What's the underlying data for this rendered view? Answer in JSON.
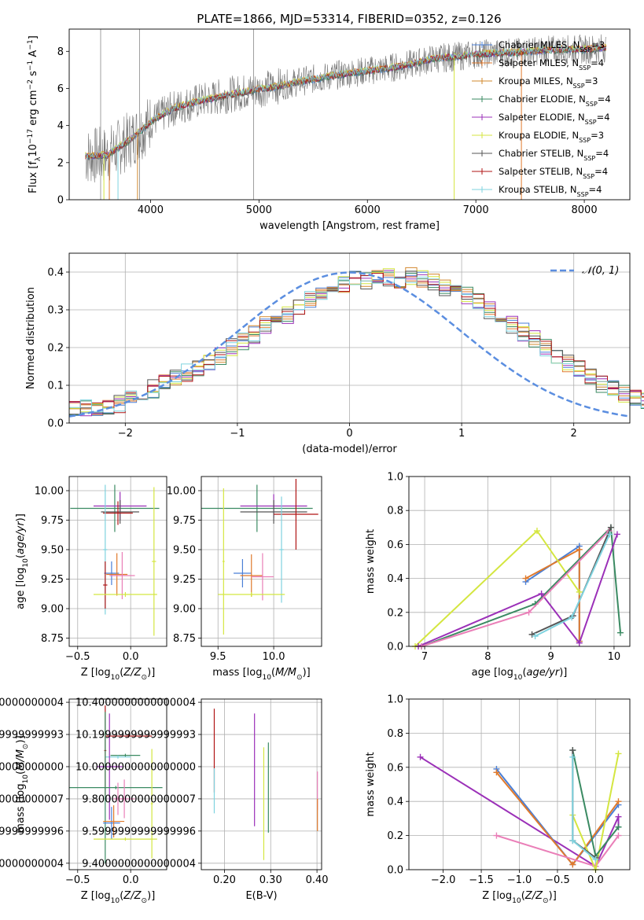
{
  "figure": {
    "title": "PLATE=1866, MJD=53314, FIBERID=0352, z=0.126"
  },
  "colors": {
    "chabrier_miles": "#4a7fd6",
    "salpeter_miles": "#e07a2c",
    "kroupa_miles": "#d2882e",
    "chabrier_elodie": "#3a8a62",
    "salpeter_elodie": "#9b30b8",
    "kroupa_elodie": "#d4e640",
    "chabrier_stelib": "#555555",
    "salpeter_stelib": "#b01515",
    "kroupa_stelib": "#7fd3df",
    "data_spectrum": "#777777",
    "normal_curve": "#5b8ee0",
    "pink": "#ea7fb8"
  },
  "chart_data": [
    {
      "type": "line",
      "panel": "spectrum",
      "title": "PLATE=1866, MJD=53314, FIBERID=0352, z=0.126",
      "xlabel": "wavelength [Angstrom, rest frame]",
      "ylabel": "Flux [f_λ 10^-17 erg cm^-2 s^-1 A^-1]",
      "xlim": [
        3250,
        8420
      ],
      "ylim": [
        0,
        9.2
      ],
      "xticks": [
        4000,
        5000,
        6000,
        7000,
        8000
      ],
      "yticks": [
        0,
        2,
        4,
        6,
        8
      ],
      "grid": false,
      "legend_position": "upper right",
      "legend": [
        {
          "name": "Chabrier MILES, N_SSP=3",
          "color": "#4a7fd6"
        },
        {
          "name": "Salpeter MILES, N_SSP=4",
          "color": "#e07a2c"
        },
        {
          "name": "Kroupa MILES, N_SSP=3",
          "color": "#d2882e"
        },
        {
          "name": "Chabrier ELODIE, N_SSP=4",
          "color": "#3a8a62"
        },
        {
          "name": "Salpeter ELODIE, N_SSP=4",
          "color": "#9b30b8"
        },
        {
          "name": "Kroupa ELODIE, N_SSP=3",
          "color": "#d4e640"
        },
        {
          "name": "Chabrier STELIB, N_SSP=4",
          "color": "#555555"
        },
        {
          "name": "Salpeter STELIB, N_SSP=4",
          "color": "#b01515"
        },
        {
          "name": "Kroupa STELIB, N_SSP=4",
          "color": "#7fd3df"
        }
      ],
      "model_continuum": {
        "x": [
          3400,
          3600,
          3800,
          3950,
          4000,
          4200,
          4400,
          4600,
          4800,
          5000,
          5200,
          5400,
          5600,
          5800,
          6000,
          6200,
          6400,
          6600,
          6800,
          7000,
          7200,
          7400,
          7600,
          7800,
          8000,
          8200
        ],
        "y": [
          2.35,
          2.4,
          3.2,
          3.9,
          4.2,
          4.9,
          5.25,
          5.5,
          5.75,
          5.95,
          6.15,
          6.4,
          6.6,
          6.8,
          6.95,
          7.1,
          7.3,
          7.6,
          7.7,
          7.85,
          7.9,
          7.95,
          8.05,
          8.1,
          8.1,
          8.2
        ]
      }
    },
    {
      "type": "line",
      "panel": "residual_histogram",
      "xlabel": "(data-model)/error",
      "ylabel": "Normed distribution",
      "xlim": [
        -2.5,
        2.5
      ],
      "ylim": [
        0,
        0.45
      ],
      "xticks": [
        -2,
        -1,
        0,
        1,
        2
      ],
      "yticks": [
        0.0,
        0.1,
        0.2,
        0.3,
        0.4
      ],
      "grid": true,
      "legend_position": "upper right",
      "legend": [
        {
          "name": "𝒩(0, 1)",
          "color": "#5b8ee0"
        }
      ],
      "bin_width": 0.1,
      "bin_start": -2.5,
      "histogram_base": [
        0.035,
        0.037,
        0.04,
        0.04,
        0.05,
        0.06,
        0.075,
        0.09,
        0.105,
        0.12,
        0.135,
        0.15,
        0.165,
        0.18,
        0.2,
        0.215,
        0.235,
        0.26,
        0.27,
        0.285,
        0.31,
        0.33,
        0.345,
        0.36,
        0.37,
        0.38,
        0.375,
        0.38,
        0.385,
        0.38,
        0.39,
        0.38,
        0.37,
        0.36,
        0.35,
        0.34,
        0.32,
        0.3,
        0.28,
        0.26,
        0.24,
        0.22,
        0.2,
        0.18,
        0.16,
        0.14,
        0.12,
        0.1,
        0.09,
        0.075,
        0.065,
        0.055,
        0.045,
        0.04,
        0.035,
        0.03,
        0.028,
        0.03,
        0.035,
        0.03
      ]
    },
    {
      "type": "scatter",
      "panel": "age_vs_Z",
      "xlabel": "Z [log10(Z/Z⊙)]",
      "ylabel": "age  [log10(age/yr)]",
      "xlim": [
        -0.58,
        0.34
      ],
      "ylim": [
        8.68,
        10.12
      ],
      "xticks": [
        -0.5,
        0.0
      ],
      "yticks": [
        8.75,
        9.0,
        9.25,
        9.5,
        9.75,
        10.0
      ],
      "grid": true,
      "points": [
        {
          "x": -0.15,
          "y": 9.85,
          "xerr": 0.42,
          "yerr": 0.2,
          "color": "#3a8a62"
        },
        {
          "x": -0.1,
          "y": 9.87,
          "xerr": 0.25,
          "yerr": 0.12,
          "color": "#9b30b8"
        },
        {
          "x": -0.1,
          "y": 9.82,
          "xerr": 0.18,
          "yerr": 0.1,
          "color": "#555555"
        },
        {
          "x": -0.12,
          "y": 9.81,
          "xerr": 0.14,
          "yerr": 0.1,
          "color": "#b01515"
        },
        {
          "x": -0.24,
          "y": 9.5,
          "xerr": 0.02,
          "yerr": 0.55,
          "color": "#7fd3df"
        },
        {
          "x": -0.18,
          "y": 9.3,
          "xerr": 0.07,
          "yerr": 0.1,
          "color": "#4a7fd6"
        },
        {
          "x": -0.13,
          "y": 9.29,
          "xerr": 0.1,
          "yerr": 0.18,
          "color": "#e07a2c"
        },
        {
          "x": -0.08,
          "y": 9.28,
          "xerr": 0.12,
          "yerr": 0.2,
          "color": "#ea7fb8"
        },
        {
          "x": -0.24,
          "y": 9.2,
          "xerr": 0.02,
          "yerr": 0.2,
          "color": "#b01515"
        },
        {
          "x": 0.22,
          "y": 9.4,
          "xerr": 0.02,
          "yerr": 0.63,
          "color": "#d4e640"
        },
        {
          "x": -0.05,
          "y": 9.12,
          "xerr": 0.3,
          "yerr": 0.02,
          "color": "#d4e640"
        }
      ]
    },
    {
      "type": "scatter",
      "panel": "age_vs_mass",
      "xlabel": "mass [log10(M/M⊙)]",
      "ylabel": "",
      "xlim": [
        9.35,
        10.43
      ],
      "ylim": [
        8.68,
        10.12
      ],
      "xticks": [
        9.5,
        10.0
      ],
      "yticks": [
        8.75,
        9.0,
        9.25,
        9.5,
        9.75,
        10.0
      ],
      "grid": true,
      "points": [
        {
          "x": 9.85,
          "y": 9.85,
          "xerr": 0.5,
          "yerr": 0.2,
          "color": "#3a8a62"
        },
        {
          "x": 10.0,
          "y": 9.87,
          "xerr": 0.3,
          "yerr": 0.1,
          "color": "#9b30b8"
        },
        {
          "x": 10.0,
          "y": 9.82,
          "xerr": 0.3,
          "yerr": 0.1,
          "color": "#555555"
        },
        {
          "x": 10.2,
          "y": 9.8,
          "xerr": 0.2,
          "yerr": 0.3,
          "color": "#b01515"
        },
        {
          "x": 10.07,
          "y": 9.5,
          "xerr": 0.02,
          "yerr": 0.45,
          "color": "#7fd3df"
        },
        {
          "x": 9.72,
          "y": 9.3,
          "xerr": 0.08,
          "yerr": 0.12,
          "color": "#4a7fd6"
        },
        {
          "x": 9.8,
          "y": 9.28,
          "xerr": 0.1,
          "yerr": 0.18,
          "color": "#e07a2c"
        },
        {
          "x": 9.9,
          "y": 9.27,
          "xerr": 0.1,
          "yerr": 0.2,
          "color": "#ea7fb8"
        },
        {
          "x": 9.55,
          "y": 9.4,
          "xerr": 0.01,
          "yerr": 0.62,
          "color": "#d4e640"
        },
        {
          "x": 9.8,
          "y": 9.12,
          "xerr": 0.3,
          "yerr": 0.02,
          "color": "#d4e640"
        }
      ]
    },
    {
      "type": "line",
      "panel": "mass_weight_vs_age",
      "xlabel": "age  [log10(age/yr)]",
      "ylabel": "mass weight",
      "xlim": [
        6.75,
        10.25
      ],
      "ylim": [
        0.0,
        1.0
      ],
      "xticks": [
        7,
        8,
        9,
        10
      ],
      "yticks": [
        0.0,
        0.2,
        0.4,
        0.6,
        0.8,
        1.0
      ],
      "grid": true,
      "series": [
        {
          "color": "#4a7fd6",
          "x": [
            8.6,
            9.45,
            9.45
          ],
          "y": [
            0.38,
            0.59,
            0.03
          ]
        },
        {
          "color": "#e07a2c",
          "x": [
            8.6,
            9.45,
            9.45
          ],
          "y": [
            0.4,
            0.57,
            0.03
          ]
        },
        {
          "color": "#d4e640",
          "x": [
            6.85,
            8.78,
            9.45
          ],
          "y": [
            0.0,
            0.68,
            0.32
          ]
        },
        {
          "color": "#3a8a62",
          "x": [
            6.95,
            8.75,
            9.95,
            10.1
          ],
          "y": [
            0.0,
            0.25,
            0.7,
            0.08
          ]
        },
        {
          "color": "#9b30b8",
          "x": [
            6.9,
            8.85,
            9.45,
            10.05
          ],
          "y": [
            0.0,
            0.31,
            0.02,
            0.66
          ]
        },
        {
          "color": "#ea7fb8",
          "x": [
            6.95,
            8.65,
            9.92
          ],
          "y": [
            0.0,
            0.2,
            0.68
          ]
        },
        {
          "color": "#555555",
          "x": [
            8.7,
            9.35,
            9.95
          ],
          "y": [
            0.07,
            0.18,
            0.7
          ]
        },
        {
          "color": "#7fd3df",
          "x": [
            8.75,
            9.33,
            9.93
          ],
          "y": [
            0.06,
            0.17,
            0.66
          ]
        }
      ]
    },
    {
      "type": "scatter",
      "panel": "mass_vs_Z",
      "xlabel": "Z [log10(Z/Z⊙)]",
      "ylabel": "mass [log10(M/M⊙)]",
      "xlim": [
        -0.58,
        0.34
      ],
      "ylim": [
        9.36,
        10.42
      ],
      "xticks": [
        -0.5,
        0.0
      ],
      "yticks": [
        9.4,
        9.6,
        9.8,
        10.0,
        10.2,
        10.4
      ],
      "grid": true,
      "points": [
        {
          "x": -0.24,
          "y": 10.1,
          "xerr": 0.01,
          "yerr": 0.28,
          "color": "#b01515"
        },
        {
          "x": -0.02,
          "y": 10.19,
          "xerr": 0.22,
          "yerr": 0.01,
          "color": "#b01515"
        },
        {
          "x": -0.05,
          "y": 10.07,
          "xerr": 0.14,
          "yerr": 0.01,
          "color": "#3a8a62"
        },
        {
          "x": -0.12,
          "y": 10.06,
          "xerr": 0.12,
          "yerr": 0.01,
          "color": "#7fd3df"
        },
        {
          "x": -0.2,
          "y": 10.0,
          "xerr": 0.12,
          "yerr": 0.33,
          "color": "#9b30b8"
        },
        {
          "x": -0.14,
          "y": 9.87,
          "xerr": 0.44,
          "yerr": 0.01,
          "color": "#3a8a62"
        },
        {
          "x": -0.24,
          "y": 9.87,
          "xerr": 0.01,
          "yerr": 0.47,
          "color": "#3a8a62"
        },
        {
          "x": -0.12,
          "y": 9.8,
          "xerr": 0.04,
          "yerr": 0.1,
          "color": "#ea7fb8"
        },
        {
          "x": -0.06,
          "y": 9.8,
          "xerr": 0.1,
          "yerr": 0.12,
          "color": "#ea7fb8"
        },
        {
          "x": -0.18,
          "y": 9.65,
          "xerr": 0.08,
          "yerr": 0.1,
          "color": "#4a7fd6"
        },
        {
          "x": -0.16,
          "y": 9.66,
          "xerr": 0.1,
          "yerr": 0.1,
          "color": "#e07a2c"
        },
        {
          "x": 0.2,
          "y": 9.77,
          "xerr": 0.01,
          "yerr": 0.34,
          "color": "#d4e640"
        },
        {
          "x": -0.05,
          "y": 9.55,
          "xerr": 0.3,
          "yerr": 0.01,
          "color": "#d4e640"
        }
      ]
    },
    {
      "type": "scatter",
      "panel": "mass_vs_ebv",
      "xlabel": "E(B-V)",
      "ylabel": "",
      "xlim": [
        0.15,
        0.41
      ],
      "ylim": [
        9.36,
        10.42
      ],
      "xticks": [
        0.2,
        0.3,
        0.4
      ],
      "yticks": [
        9.4,
        9.6,
        9.8,
        10.0,
        10.2,
        10.4
      ],
      "grid": true,
      "points": [
        {
          "x": 0.178,
          "y": 10.1,
          "yerr": 0.26,
          "color": "#b01515"
        },
        {
          "x": 0.178,
          "y": 9.85,
          "yerr": 0.14,
          "color": "#7fd3df"
        },
        {
          "x": 0.265,
          "y": 9.98,
          "yerr": 0.35,
          "color": "#9b30b8"
        },
        {
          "x": 0.285,
          "y": 9.77,
          "yerr": 0.35,
          "color": "#d4e640"
        },
        {
          "x": 0.295,
          "y": 9.87,
          "yerr": 0.28,
          "color": "#3a8a62"
        },
        {
          "x": 0.401,
          "y": 9.85,
          "yerr": 0.12,
          "color": "#ea7fb8"
        },
        {
          "x": 0.401,
          "y": 9.7,
          "yerr": 0.1,
          "color": "#e07a2c"
        }
      ]
    },
    {
      "type": "line",
      "panel": "mass_weight_vs_Z",
      "xlabel": "Z [log10(Z/Z⊙)]",
      "ylabel": "mass weight",
      "xlim": [
        -2.45,
        0.45
      ],
      "ylim": [
        0.0,
        1.0
      ],
      "xticks": [
        -2.0,
        -1.5,
        -1.0,
        -0.5,
        0.0
      ],
      "yticks": [
        0.0,
        0.2,
        0.4,
        0.6,
        0.8,
        1.0
      ],
      "grid": true,
      "series": [
        {
          "color": "#9b30b8",
          "x": [
            -2.3,
            0.0,
            0.3,
            0.3
          ],
          "y": [
            0.66,
            0.02,
            0.31,
            0.25
          ]
        },
        {
          "color": "#4a7fd6",
          "x": [
            -1.3,
            -0.3,
            0.3
          ],
          "y": [
            0.59,
            0.03,
            0.38
          ]
        },
        {
          "color": "#e07a2c",
          "x": [
            -1.3,
            -0.3,
            0.3
          ],
          "y": [
            0.57,
            0.03,
            0.4
          ]
        },
        {
          "color": "#ea7fb8",
          "x": [
            -1.3,
            0.0,
            0.3
          ],
          "y": [
            0.2,
            0.02,
            0.2
          ]
        },
        {
          "color": "#d4e640",
          "x": [
            -0.3,
            0.0,
            0.3
          ],
          "y": [
            0.32,
            0.0,
            0.68
          ]
        },
        {
          "color": "#3a8a62",
          "x": [
            -0.3,
            0.0,
            0.3
          ],
          "y": [
            0.7,
            0.08,
            0.25
          ]
        },
        {
          "color": "#555555",
          "x": [
            -0.3,
            -0.3,
            0.0
          ],
          "y": [
            0.7,
            0.17,
            0.07
          ]
        },
        {
          "color": "#7fd3df",
          "x": [
            -0.3,
            -0.3,
            0.0
          ],
          "y": [
            0.66,
            0.17,
            0.06
          ]
        }
      ]
    }
  ]
}
